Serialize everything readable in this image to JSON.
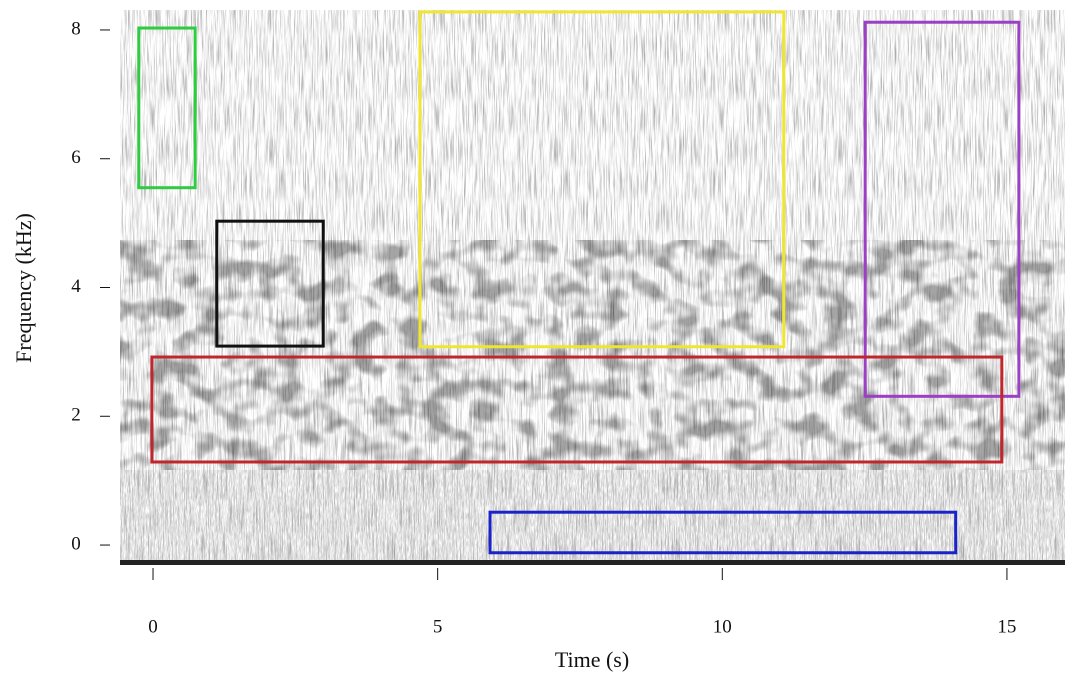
{
  "chart_data": {
    "type": "spectrogram",
    "x_label": "Time (s)",
    "y_label": "Frequency (kHz)",
    "xlim": [
      -0.58,
      16.02
    ],
    "ylim": [
      -0.31,
      8.31
    ],
    "xticks": [
      0,
      5,
      10,
      15
    ],
    "yticks": [
      0,
      2,
      4,
      6,
      8
    ],
    "boxes": [
      {
        "color": "#2ecc40",
        "x": [
          -0.25,
          0.74
        ],
        "y": [
          5.55,
          8.03
        ]
      },
      {
        "color": "#111111",
        "x": [
          1.12,
          2.99
        ],
        "y": [
          3.09,
          5.03
        ]
      },
      {
        "color": "#f0e632",
        "x": [
          4.69,
          11.08
        ],
        "y": [
          3.08,
          8.28
        ]
      },
      {
        "color": "#9b3fc4",
        "x": [
          12.51,
          15.21
        ],
        "y": [
          2.31,
          8.12
        ]
      },
      {
        "color": "#c0272d",
        "x": [
          -0.02,
          14.91
        ],
        "y": [
          1.29,
          2.92
        ]
      },
      {
        "color": "#1a22c8",
        "x": [
          5.92,
          14.1
        ],
        "y": [
          -0.12,
          0.51
        ]
      }
    ]
  }
}
